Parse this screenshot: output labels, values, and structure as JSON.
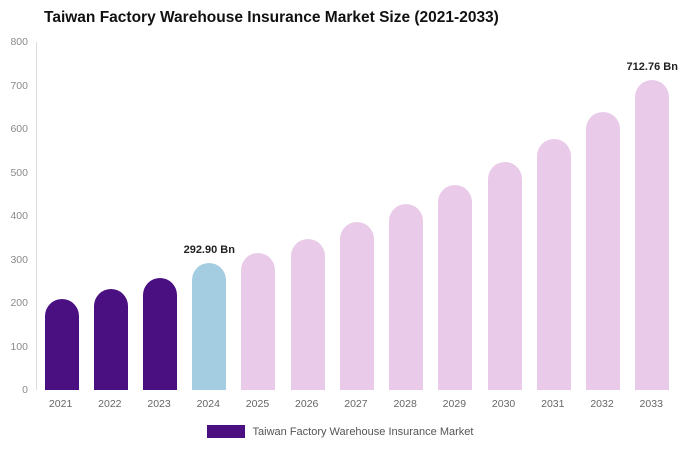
{
  "title": "Taiwan Factory Warehouse Insurance Market Size (2021-2033)",
  "legend": {
    "label": "Taiwan Factory Warehouse Insurance Market",
    "swatch_color": "#4a1082"
  },
  "colors": {
    "historical_bar": "#4a1082",
    "current_year_bar": "#a5cde1",
    "forecast_bar": "#e9cbe9",
    "axis_text": "#8a8a8a",
    "annotation_text": "#222222"
  },
  "chart_data": {
    "type": "bar",
    "title": "Taiwan Factory Warehouse Insurance Market Size (2021-2033)",
    "categories": [
      "2021",
      "2022",
      "2023",
      "2024",
      "2025",
      "2026",
      "2027",
      "2028",
      "2029",
      "2030",
      "2031",
      "2032",
      "2033"
    ],
    "values": [
      210,
      233,
      258,
      292.9,
      315,
      348,
      386,
      428,
      471,
      524,
      578,
      639,
      712.76
    ],
    "bar_colors": [
      "#4a1082",
      "#4a1082",
      "#4a1082",
      "#a5cde1",
      "#e9cbe9",
      "#e9cbe9",
      "#e9cbe9",
      "#e9cbe9",
      "#e9cbe9",
      "#e9cbe9",
      "#e9cbe9",
      "#e9cbe9",
      "#e9cbe9"
    ],
    "annotations": [
      {
        "index": 3,
        "text": "292.90 Bn"
      },
      {
        "index": 12,
        "text": "712.76 Bn"
      }
    ],
    "xlabel": "",
    "ylabel": "",
    "ylim": [
      0,
      800
    ],
    "yticks": [
      0,
      100,
      200,
      300,
      400,
      500,
      600,
      700,
      800
    ],
    "grid": false,
    "legend_position": "bottom",
    "legend_entries": [
      "Taiwan Factory Warehouse Insurance Market"
    ]
  }
}
